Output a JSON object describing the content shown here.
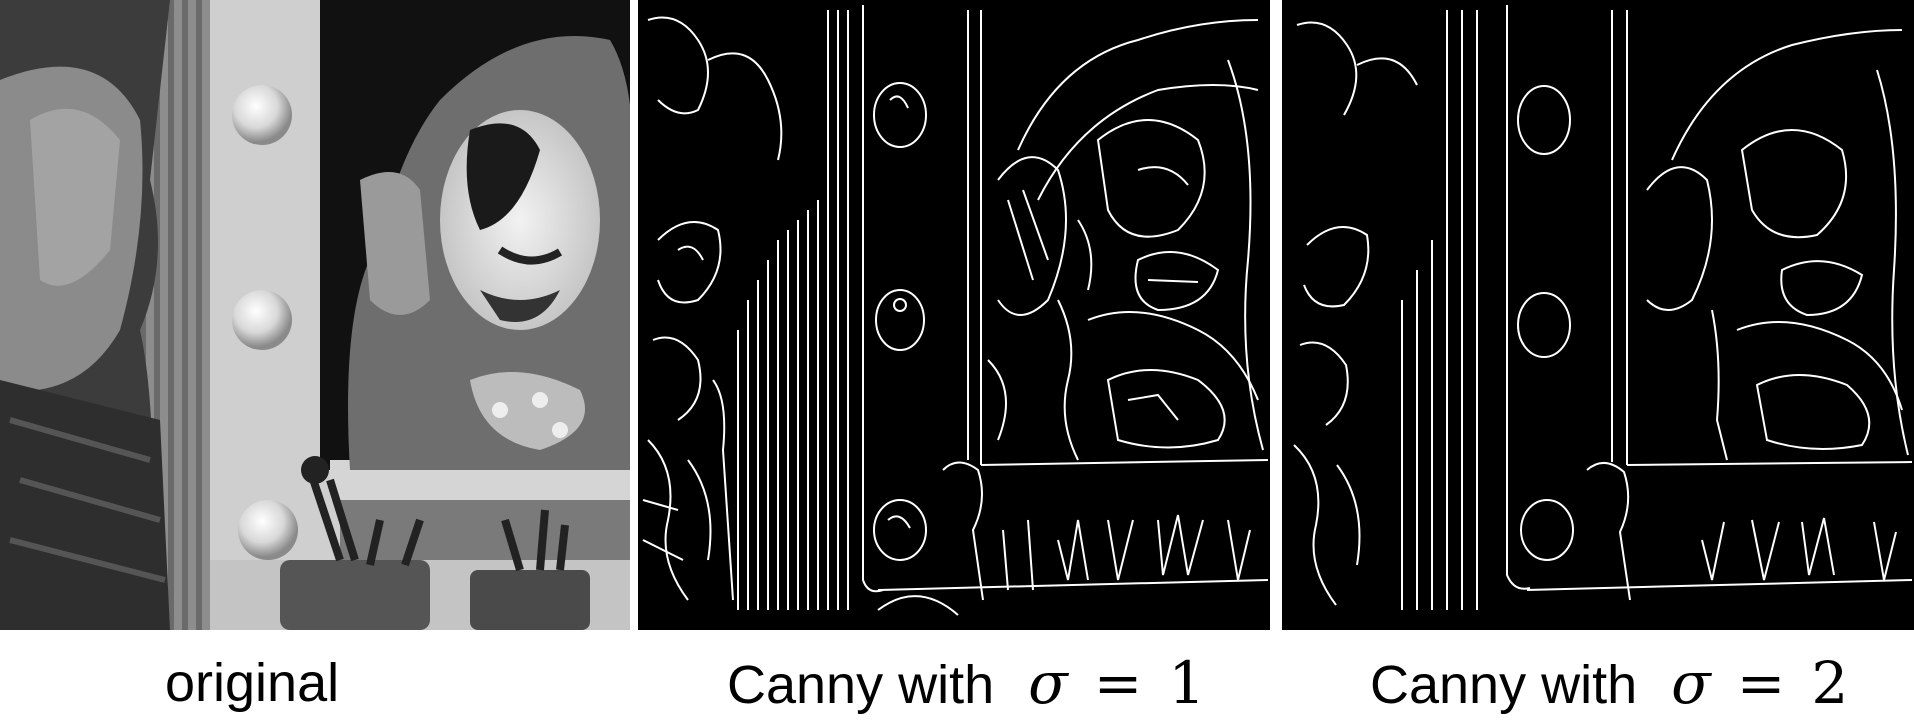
{
  "figure": {
    "panels": [
      {
        "id": "original",
        "caption": "original"
      },
      {
        "id": "canny-sigma-1",
        "caption_prefix": "Canny with",
        "symbol": "σ",
        "equals": "=",
        "value": "1"
      },
      {
        "id": "canny-sigma-2",
        "caption_prefix": "Canny with",
        "symbol": "σ",
        "equals": "=",
        "value": "2"
      }
    ]
  }
}
